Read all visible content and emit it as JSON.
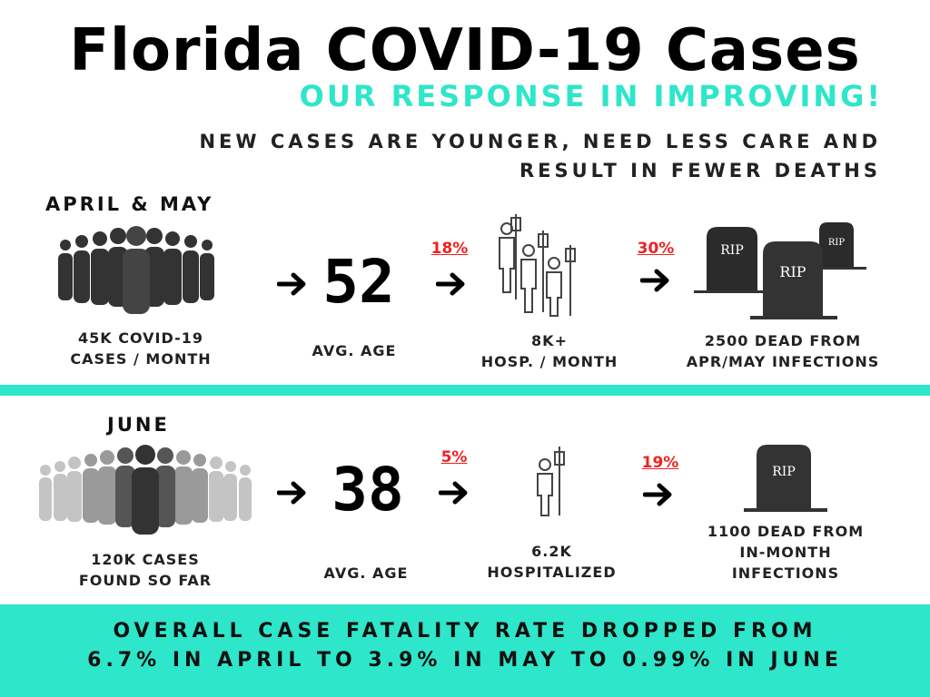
{
  "header": {
    "title": "Florida COVID-19 Cases",
    "subtitle": "OUR RESPONSE IN IMPROVING!",
    "tagline_line1": "NEW CASES ARE YOUNGER, NEED LESS CARE AND",
    "tagline_line2": "RESULT IN FEWER DEATHS"
  },
  "april_may": {
    "label": "APRIL & MAY",
    "cases_line1": "45K COVID-19",
    "cases_line2": "CASES / MONTH",
    "age": "52",
    "age_label": "AVG. AGE",
    "hosp_pct": "18%",
    "hosp_line1": "8K+",
    "hosp_line2": "HOSP. / MONTH",
    "death_pct": "30%",
    "deaths_line1": "2500 DEAD FROM",
    "deaths_line2": "APR/MAY INFECTIONS",
    "rip_text": "RIP"
  },
  "june": {
    "label": "JUNE",
    "cases_line1": "120K CASES",
    "cases_line2": "FOUND SO FAR",
    "age": "38",
    "age_label": "AVG. AGE",
    "hosp_pct": "5%",
    "hosp_line1": "6.2K",
    "hosp_line2": "HOSPITALIZED",
    "death_pct": "19%",
    "deaths_line1": "1100 DEAD FROM",
    "deaths_line2": "IN-MONTH",
    "deaths_line3": "INFECTIONS",
    "rip_text": "RIP"
  },
  "footer": {
    "line1": "OVERALL CASE FATALITY RATE DROPPED FROM",
    "line2": "6.7% IN APRIL TO 3.9% IN MAY TO 0.99% IN JUNE"
  },
  "colors": {
    "accent": "#2ee6c9",
    "percent_red": "#ee2222",
    "icon_dark": "#333333",
    "icon_light": "#bbbbbb"
  }
}
